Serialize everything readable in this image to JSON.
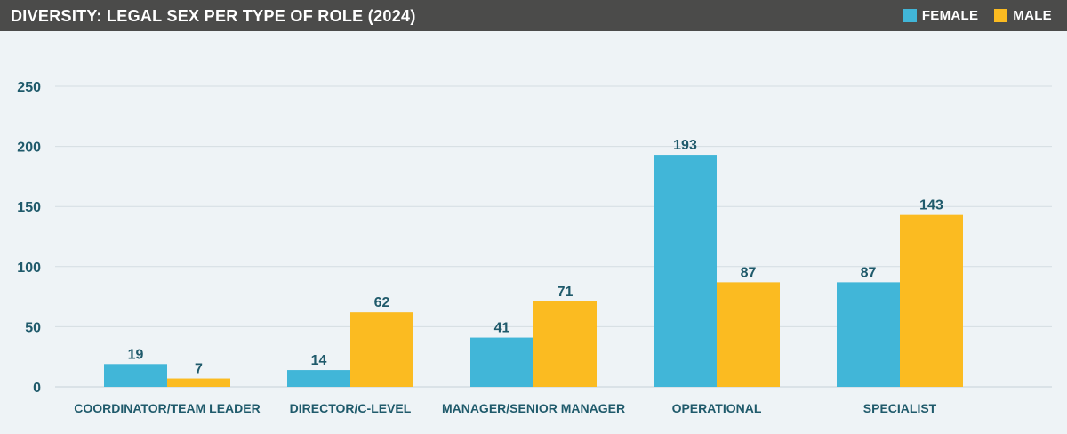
{
  "header": {
    "title": "DIVERSITY: LEGAL SEX PER TYPE OF ROLE (2024)"
  },
  "legend": [
    {
      "label": "FEMALE",
      "color": "#41b6d8"
    },
    {
      "label": "MALE",
      "color": "#fbbb21"
    }
  ],
  "chart_data": {
    "type": "bar",
    "title": "DIVERSITY: LEGAL SEX PER TYPE OF ROLE (2024)",
    "categories": [
      "COORDINATOR/TEAM LEADER",
      "DIRECTOR/C-LEVEL",
      "MANAGER/SENIOR MANAGER",
      "OPERATIONAL",
      "SPECIALIST"
    ],
    "series": [
      {
        "name": "FEMALE",
        "color": "#41b6d8",
        "values": [
          19,
          14,
          41,
          193,
          87
        ]
      },
      {
        "name": "MALE",
        "color": "#fbbb21",
        "values": [
          7,
          62,
          71,
          87,
          143
        ]
      }
    ],
    "yticks": [
      0,
      50,
      100,
      150,
      200,
      250
    ],
    "ylim": [
      0,
      250
    ],
    "grid": true,
    "legend_position": "top-right",
    "xlabel": "",
    "ylabel": ""
  }
}
